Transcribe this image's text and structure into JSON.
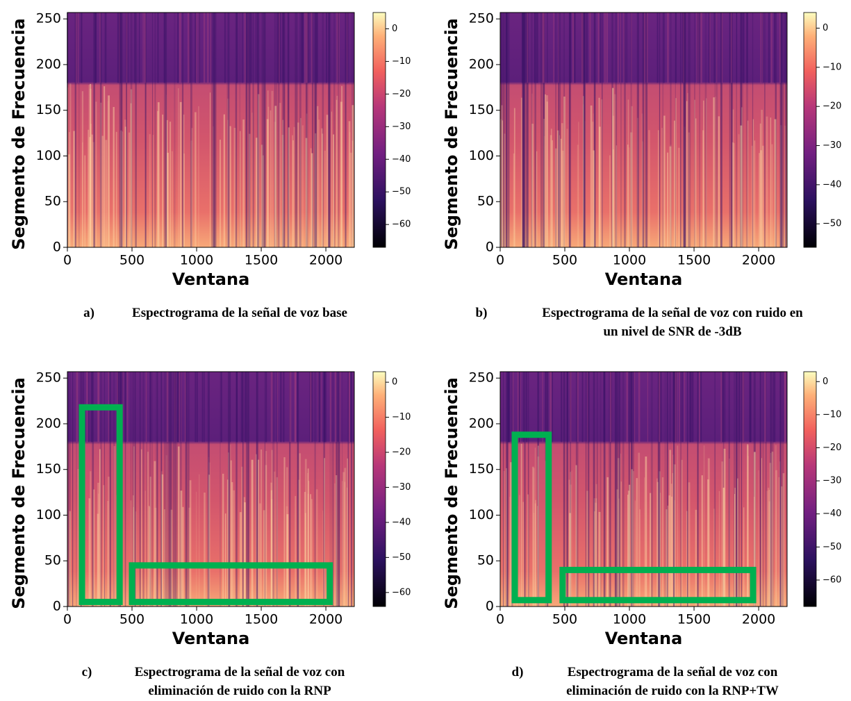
{
  "chart_data": [
    {
      "type": "heatmap",
      "label": "a)",
      "caption_lines": [
        "Espectrograma de la señal de voz base"
      ],
      "xlabel": "Ventana",
      "ylabel": "Segmento de Frecuencia",
      "xlim": [
        0,
        2220
      ],
      "ylim": [
        0,
        257
      ],
      "xticks": [
        0,
        500,
        1000,
        1500,
        2000
      ],
      "yticks": [
        0,
        50,
        100,
        150,
        200,
        250
      ],
      "colorbar": {
        "colormap": "magma",
        "clim": [
          -67,
          5
        ],
        "ticks": [
          0,
          {
            "value": -10,
            "label": "−10"
          },
          {
            "value": -20,
            "label": "−20"
          },
          {
            "value": -30,
            "label": "−30"
          },
          {
            "value": -40,
            "label": "−40"
          },
          {
            "value": -50,
            "label": "−50"
          },
          {
            "value": -60,
            "label": "−60"
          }
        ]
      },
      "highlights": []
    },
    {
      "type": "heatmap",
      "label": "b)",
      "caption_lines": [
        "Espectrograma de la señal de voz con ruido en",
        "un nivel de SNR de -3dB"
      ],
      "xlabel": "Ventana",
      "ylabel": "Segmento de Frecuencia",
      "xlim": [
        0,
        2220
      ],
      "ylim": [
        0,
        257
      ],
      "xticks": [
        0,
        500,
        1000,
        1500,
        2000
      ],
      "yticks": [
        0,
        50,
        100,
        150,
        200,
        250
      ],
      "colorbar": {
        "colormap": "magma",
        "clim": [
          -56,
          4
        ],
        "ticks": [
          0,
          {
            "value": -10,
            "label": "−10"
          },
          {
            "value": -20,
            "label": "−20"
          },
          {
            "value": -30,
            "label": "−30"
          },
          {
            "value": -40,
            "label": "−40"
          },
          {
            "value": -50,
            "label": "−50"
          }
        ]
      },
      "highlights": []
    },
    {
      "type": "heatmap",
      "label": "c)",
      "caption_lines": [
        "Espectrograma de la señal de voz con",
        "eliminación de ruido con la RNP"
      ],
      "xlabel": "Ventana",
      "ylabel": "Segmento de Frecuencia",
      "xlim": [
        0,
        2220
      ],
      "ylim": [
        0,
        257
      ],
      "xticks": [
        0,
        500,
        1000,
        1500,
        2000
      ],
      "yticks": [
        0,
        50,
        100,
        150,
        200,
        250
      ],
      "colorbar": {
        "colormap": "magma",
        "clim": [
          -64,
          3
        ],
        "ticks": [
          0,
          {
            "value": -10,
            "label": "−10"
          },
          {
            "value": -20,
            "label": "−20"
          },
          {
            "value": -30,
            "label": "−30"
          },
          {
            "value": -40,
            "label": "−40"
          },
          {
            "value": -50,
            "label": "−50"
          },
          {
            "value": -60,
            "label": "−60"
          }
        ]
      },
      "highlights": [
        {
          "xlim": [
            113,
            404
          ],
          "ylim": [
            5,
            218
          ],
          "color": "#00b050"
        },
        {
          "xlim": [
            500,
            2030
          ],
          "ylim": [
            5,
            45
          ],
          "color": "#00b050"
        }
      ]
    },
    {
      "type": "heatmap",
      "label": "d)",
      "caption_lines": [
        "Espectrograma de la señal de voz con",
        "eliminación de ruido con la RNP+TW"
      ],
      "xlabel": "Ventana",
      "ylabel": "Segmento de Frecuencia",
      "xlim": [
        0,
        2220
      ],
      "ylim": [
        0,
        257
      ],
      "xticks": [
        0,
        500,
        1000,
        1500,
        2000
      ],
      "yticks": [
        0,
        50,
        100,
        150,
        200,
        250
      ],
      "colorbar": {
        "colormap": "magma",
        "clim": [
          -68,
          3
        ],
        "ticks": [
          0,
          {
            "value": -10,
            "label": "−10"
          },
          {
            "value": -20,
            "label": "−20"
          },
          {
            "value": -30,
            "label": "−30"
          },
          {
            "value": -40,
            "label": "−40"
          },
          {
            "value": -50,
            "label": "−50"
          },
          {
            "value": -60,
            "label": "−60"
          }
        ]
      },
      "highlights": [
        {
          "xlim": [
            113,
            375
          ],
          "ylim": [
            7,
            188
          ],
          "color": "#00b050"
        },
        {
          "xlim": [
            483,
            1957
          ],
          "ylim": [
            7,
            40
          ],
          "color": "#00b050"
        }
      ]
    }
  ]
}
